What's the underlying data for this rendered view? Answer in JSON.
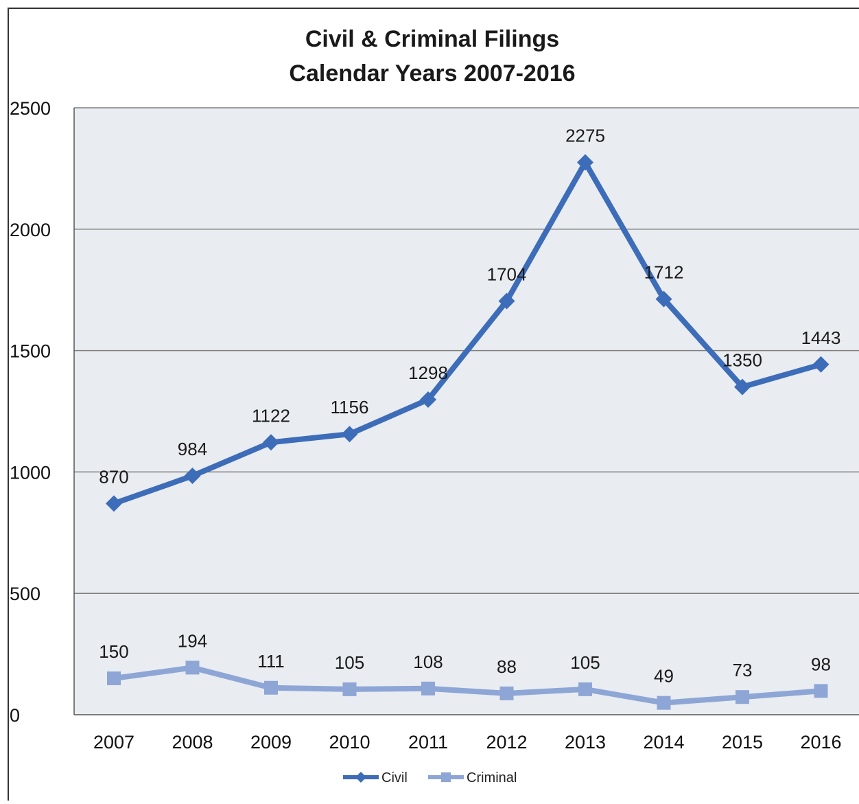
{
  "chart_data": {
    "type": "line",
    "title": "Civil & Criminal Filings",
    "subtitle": "Calendar Years 2007-2016",
    "xlabel": "",
    "ylabel": "",
    "categories": [
      "2007",
      "2008",
      "2009",
      "2010",
      "2011",
      "2012",
      "2013",
      "2014",
      "2015",
      "2016"
    ],
    "ylim": [
      0,
      2500
    ],
    "yticks": [
      0,
      500,
      1000,
      1500,
      2000,
      2500
    ],
    "grid": true,
    "legend_position": "bottom",
    "series": [
      {
        "name": "Civil",
        "marker": "diamond",
        "color": "#3d6cb8",
        "values": [
          870,
          984,
          1122,
          1156,
          1298,
          1704,
          2275,
          1712,
          1350,
          1443
        ]
      },
      {
        "name": "Criminal",
        "marker": "square",
        "color": "#8ea6d6",
        "values": [
          150,
          194,
          111,
          105,
          108,
          88,
          105,
          49,
          73,
          98
        ]
      }
    ]
  },
  "colors": {
    "plot_background": "#e9ecf0",
    "gridline": "#7f7f7f",
    "frame": "#333333"
  }
}
